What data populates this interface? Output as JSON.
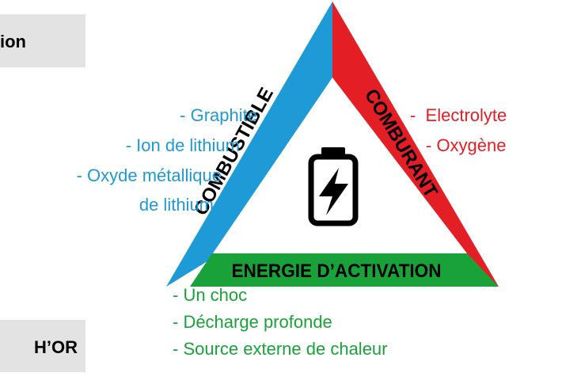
{
  "boxes": [
    {
      "label": "ion"
    },
    {
      "label": "H’OR"
    }
  ],
  "triangle": {
    "fuel": {
      "label": "COMBUSTIBLE",
      "items": [
        "- Graphite",
        "- Ion de lithium",
        "- Oxyde métallique",
        "de lithium"
      ]
    },
    "oxidizer": {
      "label": "COMBURANT",
      "items": [
        "-  Electrolyte",
        "- Oxygène"
      ]
    },
    "activation": {
      "label": "ENERGIE D’ACTIVATION",
      "items": [
        "- Un choc",
        "- Décharge profonde",
        "- Source externe de chaleur"
      ]
    }
  }
}
